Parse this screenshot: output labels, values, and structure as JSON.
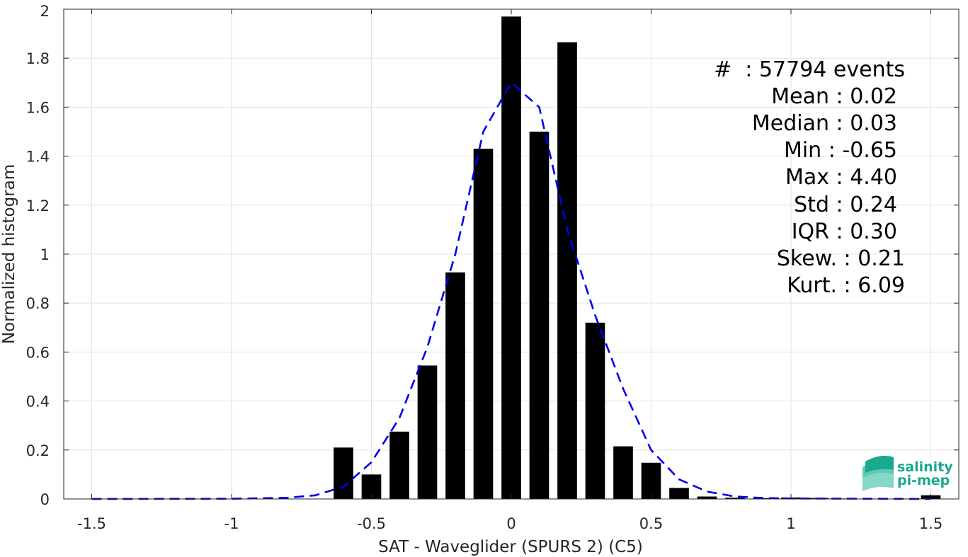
{
  "chart_data": {
    "type": "bar",
    "xlabel": "SAT - Waveglider (SPURS 2) (C5)",
    "ylabel": "Normalized histogram",
    "xlim": [
      -1.6,
      1.6
    ],
    "ylim": [
      0,
      2
    ],
    "grid": true,
    "xticks": [
      -1.5,
      -1,
      -0.5,
      0,
      0.5,
      1,
      1.5
    ],
    "xtick_labels": [
      "-1.5",
      "-1",
      "-0.5",
      "0",
      "0.5",
      "1",
      "1.5"
    ],
    "yticks": [
      0,
      0.2,
      0.4,
      0.6,
      0.8,
      1,
      1.2,
      1.4,
      1.6,
      1.8,
      2
    ],
    "ytick_labels": [
      "0",
      "0.2",
      "0.4",
      "0.6",
      "0.8",
      "1",
      "1.2",
      "1.4",
      "1.6",
      "1.8",
      "2"
    ],
    "bar_color": "#000000",
    "bar_width": 0.07,
    "bars": {
      "x": [
        -0.6,
        -0.5,
        -0.4,
        -0.3,
        -0.2,
        -0.1,
        0.0,
        0.1,
        0.2,
        0.3,
        0.4,
        0.5,
        0.6,
        0.7,
        0.8,
        0.9,
        1.0,
        1.1,
        1.2,
        1.3,
        1.4,
        1.5
      ],
      "values": [
        0.21,
        0.1,
        0.275,
        0.545,
        0.925,
        1.43,
        1.97,
        1.5,
        1.865,
        0.72,
        0.215,
        0.148,
        0.045,
        0.01,
        0.005,
        0.003,
        0.006,
        0.004,
        0.002,
        0.001,
        0.001,
        0.015
      ]
    },
    "fit_curve": {
      "color": "#0000ee",
      "style": "dashed",
      "x": [
        -1.5,
        -1.0,
        -0.8,
        -0.7,
        -0.6,
        -0.5,
        -0.4,
        -0.3,
        -0.2,
        -0.1,
        0.0,
        0.1,
        0.2,
        0.3,
        0.4,
        0.5,
        0.6,
        0.7,
        0.8,
        0.9,
        1.0,
        1.5
      ],
      "values": [
        0.0,
        0.001,
        0.005,
        0.015,
        0.05,
        0.15,
        0.33,
        0.62,
        1.0,
        1.5,
        1.7,
        1.6,
        1.1,
        0.75,
        0.45,
        0.2,
        0.08,
        0.03,
        0.01,
        0.004,
        0.002,
        0.0
      ]
    },
    "annotation_lines": [
      "#  : 57794 events",
      "Mean : 0.02",
      "Median : 0.03",
      "Min : -0.65",
      "Max : 4.40",
      "Std : 0.24",
      "IQR : 0.30",
      "Skew. : 0.21",
      "Kurt. : 6.09"
    ]
  },
  "logo": {
    "line1": "salinity",
    "line2": "pi-mep",
    "color": "#1aa88f"
  }
}
